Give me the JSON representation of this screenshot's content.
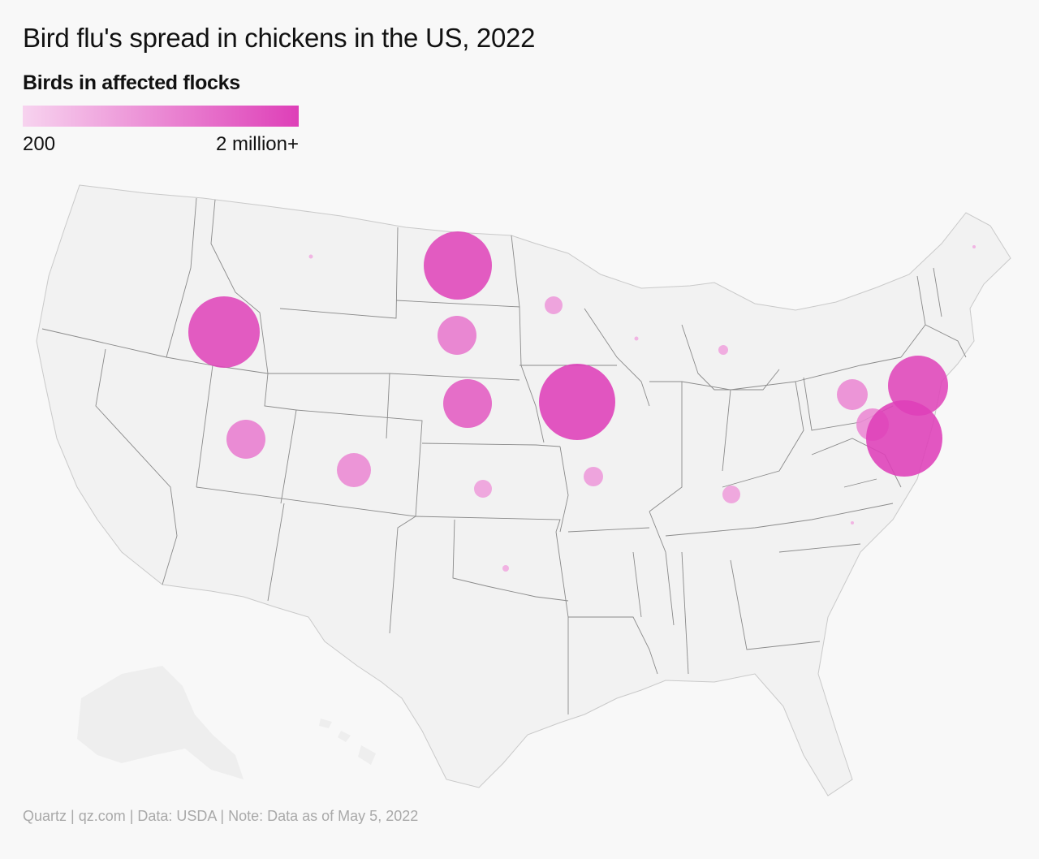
{
  "title": "Bird flu's spread in chickens in the US, 2022",
  "legend": {
    "title": "Birds in affected flocks",
    "min_label": "200",
    "max_label": "2 million+",
    "color_min": "#f7d3ef",
    "color_max": "#de3fb8"
  },
  "footer": "Quartz | qz.com | Data: USDA | Note: Data as of May 5, 2022",
  "colors": {
    "land": "#f2f2f2",
    "land_faint": "#efefef",
    "border": "#7a7a7a",
    "bubble": "#d63aad"
  },
  "chart_data": {
    "type": "bubble-map",
    "size_meaning": "Birds in affected flocks",
    "size_range": [
      200,
      2000000
    ],
    "points": [
      {
        "state": "Montana",
        "intensity": 0.02
      },
      {
        "state": "North Dakota",
        "intensity": 0.95
      },
      {
        "state": "Idaho",
        "intensity": 0.95
      },
      {
        "state": "South Dakota",
        "intensity": 0.5
      },
      {
        "state": "Minnesota",
        "intensity": 0.2
      },
      {
        "state": "Wisconsin",
        "intensity": 0.02
      },
      {
        "state": "Michigan",
        "intensity": 0.1
      },
      {
        "state": "Nebraska",
        "intensity": 0.75
      },
      {
        "state": "Iowa",
        "intensity": 1.0
      },
      {
        "state": "Utah",
        "intensity": 0.45
      },
      {
        "state": "Colorado",
        "intensity": 0.35
      },
      {
        "state": "Kansas",
        "intensity": 0.15
      },
      {
        "state": "Missouri",
        "intensity": 0.2
      },
      {
        "state": "Kentucky",
        "intensity": 0.15
      },
      {
        "state": "Oklahoma",
        "intensity": 0.05
      },
      {
        "state": "Pennsylvania",
        "intensity": 0.35
      },
      {
        "state": "New Jersey / New York",
        "intensity": 0.95
      },
      {
        "state": "Maryland",
        "intensity": 0.35
      },
      {
        "state": "Delaware",
        "intensity": 1.0
      },
      {
        "state": "North Carolina",
        "intensity": 0.02
      },
      {
        "state": "Maine",
        "intensity": 0.02
      }
    ]
  }
}
